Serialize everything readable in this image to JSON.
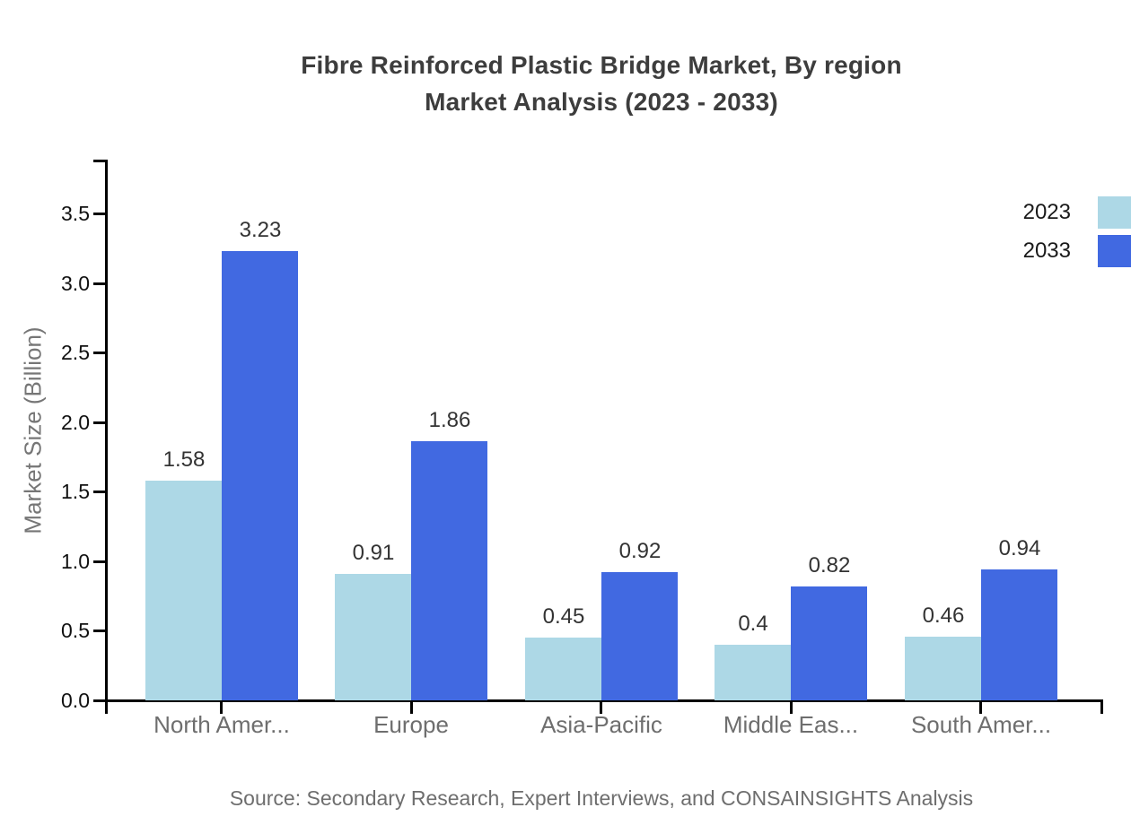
{
  "title": {
    "line1": "Fibre Reinforced Plastic Bridge Market, By region",
    "line2": "Market Analysis (2023 - 2033)"
  },
  "source": "Source: Secondary Research, Expert Interviews, and CONSAINSIGHTS Analysis",
  "legend": [
    {
      "label": "2023",
      "color": "#ADD8E6"
    },
    {
      "label": "2033",
      "color": "#4169E1"
    }
  ],
  "colors": {
    "series_2023": "#ADD8E6",
    "series_2033": "#4169E1",
    "axis": "#000000",
    "title_text": "#3d3d3d",
    "muted_text": "#6e6e6e",
    "tick_label_text": "#111111",
    "value_label_text": "#333333"
  },
  "chart_data": {
    "type": "bar",
    "title": "Fibre Reinforced Plastic Bridge Market, By region Market Analysis (2023 - 2033)",
    "categories": [
      "North Amer...",
      "Europe",
      "Asia-Pacific",
      "Middle Eas...",
      "South Amer..."
    ],
    "series": [
      {
        "name": "2023",
        "color": "#ADD8E6",
        "values": [
          1.58,
          0.91,
          0.45,
          0.4,
          0.46
        ]
      },
      {
        "name": "2033",
        "color": "#4169E1",
        "values": [
          3.23,
          1.86,
          0.92,
          0.82,
          0.94
        ]
      }
    ],
    "xlabel": "",
    "ylabel": "Market Size (Billion)",
    "ytick_labels": [
      "0.0",
      "0.5",
      "1.0",
      "1.5",
      "2.0",
      "2.5",
      "3.0",
      "3.5"
    ],
    "ylim": [
      0,
      3.9
    ],
    "bar_value_labels": true,
    "grid": false,
    "legend_position": "top-right"
  }
}
